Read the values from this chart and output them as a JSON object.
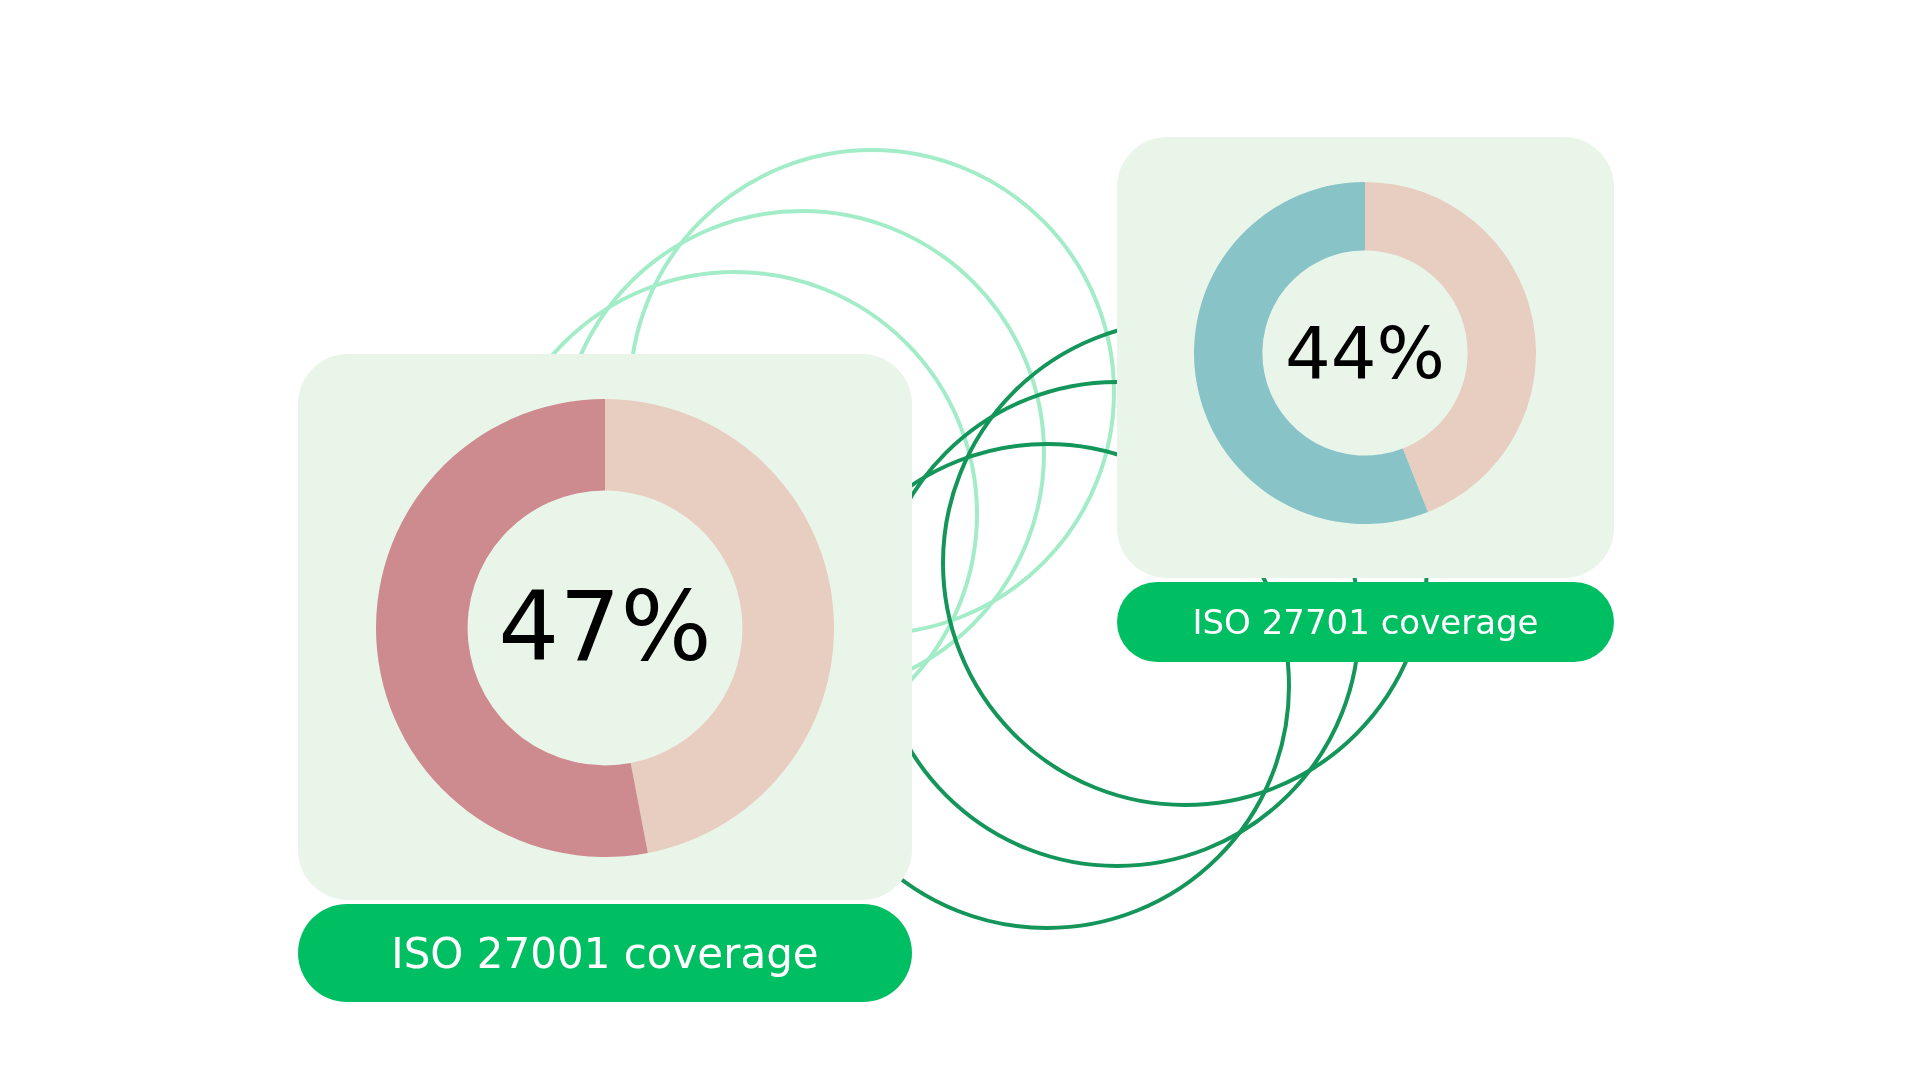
{
  "chart_data": [
    {
      "type": "donut",
      "title": "ISO 27001 coverage",
      "categories": [
        null,
        null
      ],
      "values": [
        47,
        53
      ],
      "colors": [
        "#e8cec0",
        "#cd8b90"
      ],
      "annotations": [
        "47%"
      ]
    },
    {
      "type": "donut",
      "title": "ISO 27701 coverage",
      "categories": [
        null,
        null
      ],
      "values": [
        44,
        56
      ],
      "colors": [
        "#e8cec0",
        "#88c3c8"
      ],
      "annotations": [
        "44%"
      ]
    }
  ]
}
